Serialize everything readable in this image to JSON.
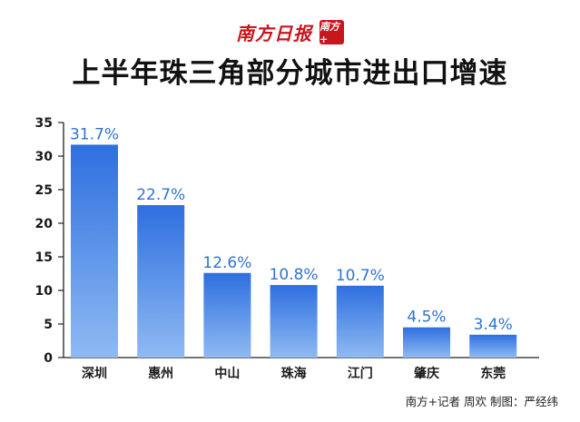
{
  "masthead": {
    "name": "南方日报",
    "logo_text": "南方+"
  },
  "title": "上半年珠三角部分城市进出口增速",
  "credit": "南方+记者 周欢 制图：严经纬",
  "colors": {
    "bar_top": "#2e6fe0",
    "bar_bottom": "#8fbaf2",
    "value_label": "#2f74d0",
    "masthead": "#c8161d"
  },
  "chart_data": {
    "type": "bar",
    "categories": [
      "深圳",
      "惠州",
      "中山",
      "珠海",
      "江门",
      "肇庆",
      "东莞"
    ],
    "values": [
      31.7,
      22.7,
      12.6,
      10.8,
      10.7,
      4.5,
      3.4
    ],
    "value_labels": [
      "31.7%",
      "22.7%",
      "12.6%",
      "10.8%",
      "10.7%",
      "4.5%",
      "3.4%"
    ],
    "y_ticks": [
      0,
      5,
      10,
      15,
      20,
      25,
      30,
      35
    ],
    "ylim": [
      0,
      35
    ],
    "grid": false,
    "legend": "none"
  }
}
